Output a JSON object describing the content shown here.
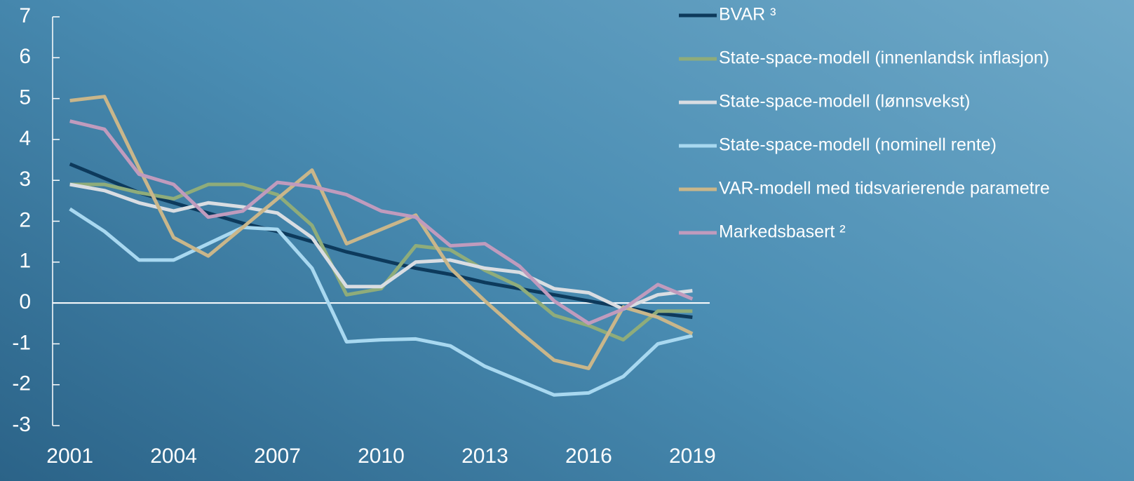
{
  "chart_data": {
    "type": "line",
    "x": [
      2001,
      2002,
      2003,
      2004,
      2005,
      2006,
      2007,
      2008,
      2009,
      2010,
      2011,
      2012,
      2013,
      2014,
      2015,
      2016,
      2017,
      2018,
      2019
    ],
    "xlim": [
      2000.5,
      2019.5
    ],
    "xticks": [
      2001,
      2004,
      2007,
      2010,
      2013,
      2016,
      2019
    ],
    "ylim": [
      -3,
      7
    ],
    "yticks": [
      -3,
      -2,
      -1,
      0,
      1,
      2,
      3,
      4,
      5,
      6,
      7
    ],
    "legend": "top-right",
    "series": [
      {
        "name": "BVAR ³",
        "color": "#0d3a5c",
        "values": [
          3.4,
          3.05,
          2.7,
          2.45,
          2.2,
          1.95,
          1.75,
          1.5,
          1.25,
          1.05,
          0.85,
          0.7,
          0.5,
          0.35,
          0.2,
          0.05,
          -0.1,
          -0.25,
          -0.35
        ]
      },
      {
        "name": "State-space-modell (innenlandsk inflasjon)",
        "color": "#8fac7a",
        "values": [
          2.9,
          2.9,
          2.7,
          2.55,
          2.9,
          2.9,
          2.65,
          1.9,
          0.2,
          0.35,
          1.4,
          1.3,
          0.8,
          0.4,
          -0.3,
          -0.55,
          -0.9,
          -0.2,
          -0.2
        ]
      },
      {
        "name": "State-space-modell (lønnsvekst)",
        "color": "#d9dde2",
        "values": [
          2.9,
          2.75,
          2.45,
          2.25,
          2.45,
          2.35,
          2.2,
          1.6,
          0.4,
          0.4,
          1.0,
          1.05,
          0.85,
          0.75,
          0.35,
          0.25,
          -0.15,
          0.2,
          0.3
        ]
      },
      {
        "name": "State-space-modell (nominell rente)",
        "color": "#a8d8f0",
        "values": [
          2.3,
          1.75,
          1.05,
          1.05,
          1.45,
          1.85,
          1.8,
          0.85,
          -0.95,
          -0.9,
          -0.88,
          -1.05,
          -1.55,
          -1.9,
          -2.25,
          -2.2,
          -1.8,
          -1.0,
          -0.8
        ]
      },
      {
        "name": "VAR-modell med tidsvarierende parametre",
        "color": "#c9b68a",
        "values": [
          4.95,
          5.05,
          3.3,
          1.6,
          1.15,
          1.85,
          2.55,
          3.25,
          1.45,
          1.8,
          2.15,
          0.85,
          0.05,
          -0.7,
          -1.4,
          -1.6,
          -0.1,
          -0.35,
          -0.75
        ]
      },
      {
        "name": "Markedsbasert ²",
        "color": "#c09bbd",
        "values": [
          4.45,
          4.25,
          3.15,
          2.9,
          2.1,
          2.25,
          2.95,
          2.85,
          2.65,
          2.25,
          2.1,
          1.4,
          1.45,
          0.9,
          0.05,
          -0.5,
          -0.15,
          0.45,
          0.1
        ]
      }
    ]
  }
}
